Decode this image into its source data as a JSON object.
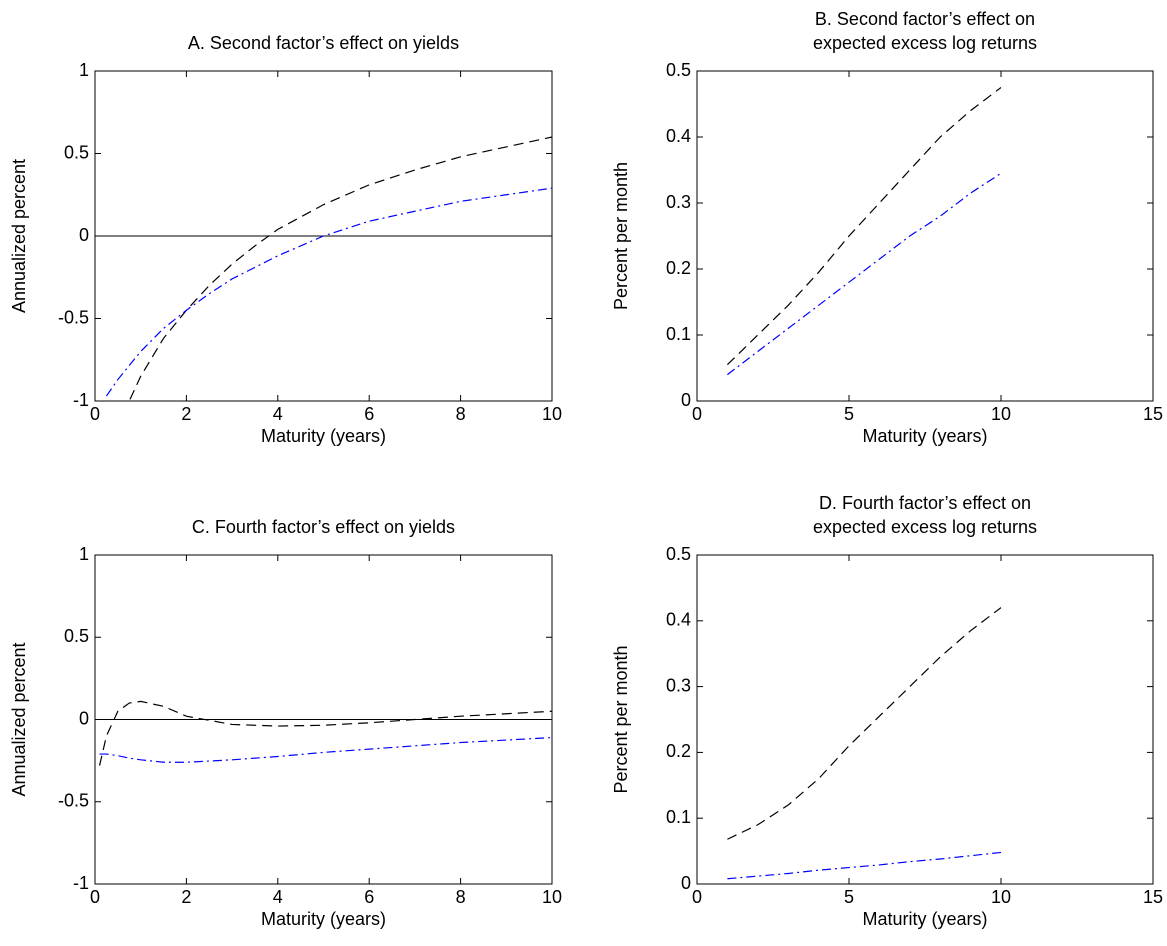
{
  "chart_data": [
    {
      "type": "line",
      "title": [
        "A. Second factor’s effect on yields"
      ],
      "xlabel": "Maturity (years)",
      "ylabel": "Annualized percent",
      "x": [
        0.25,
        0.5,
        1,
        1.5,
        2,
        2.5,
        3,
        3.5,
        4,
        5,
        6,
        7,
        8,
        9,
        10
      ],
      "series": [
        {
          "color": "#000000",
          "dash": "dashed",
          "values": [
            -1.35,
            -1.15,
            -0.85,
            -0.62,
            -0.45,
            -0.3,
            -0.17,
            -0.06,
            0.04,
            0.19,
            0.31,
            0.4,
            0.48,
            0.54,
            0.6
          ]
        },
        {
          "color": "#0000ff",
          "dash": "dashdot",
          "values": [
            -0.97,
            -0.87,
            -0.7,
            -0.56,
            -0.45,
            -0.35,
            -0.26,
            -0.19,
            -0.12,
            0.0,
            0.09,
            0.15,
            0.21,
            0.25,
            0.29
          ]
        }
      ],
      "xlim": [
        0,
        10
      ],
      "xticks": [
        0,
        2,
        4,
        6,
        8,
        10
      ],
      "ylim": [
        -1,
        1
      ],
      "yticks": [
        -1,
        -0.5,
        0,
        0.5,
        1
      ],
      "hline": 0
    },
    {
      "type": "line",
      "title": [
        "B. Second factor’s effect on",
        "expected excess log returns"
      ],
      "xlabel": "Maturity (years)",
      "ylabel": "Percent per month",
      "x": [
        1,
        2,
        3,
        4,
        5,
        6,
        7,
        8,
        9,
        10
      ],
      "series": [
        {
          "color": "#000000",
          "dash": "dashed",
          "values": [
            0.055,
            0.1,
            0.145,
            0.195,
            0.25,
            0.3,
            0.35,
            0.4,
            0.44,
            0.475
          ]
        },
        {
          "color": "#0000ff",
          "dash": "dashdot",
          "values": [
            0.04,
            0.075,
            0.11,
            0.145,
            0.18,
            0.215,
            0.25,
            0.28,
            0.315,
            0.345
          ]
        }
      ],
      "xlim": [
        0,
        15
      ],
      "xticks": [
        0,
        5,
        10,
        15
      ],
      "ylim": [
        0,
        0.5
      ],
      "yticks": [
        0,
        0.1,
        0.2,
        0.3,
        0.4,
        0.5
      ]
    },
    {
      "type": "line",
      "title": [
        "C. Fourth factor’s effect on yields"
      ],
      "xlabel": "Maturity (years)",
      "ylabel": "Annualized percent",
      "x": [
        0.1,
        0.25,
        0.5,
        0.75,
        1,
        1.5,
        2,
        3,
        4,
        5,
        6,
        7,
        8,
        9,
        10
      ],
      "series": [
        {
          "color": "#000000",
          "dash": "dashed",
          "values": [
            -0.28,
            -0.1,
            0.05,
            0.1,
            0.11,
            0.08,
            0.02,
            -0.03,
            -0.04,
            -0.035,
            -0.02,
            0.0,
            0.02,
            0.035,
            0.05
          ]
        },
        {
          "color": "#0000ff",
          "dash": "dashdot",
          "values": [
            -0.21,
            -0.21,
            -0.22,
            -0.235,
            -0.245,
            -0.26,
            -0.26,
            -0.245,
            -0.225,
            -0.2,
            -0.18,
            -0.16,
            -0.14,
            -0.125,
            -0.11
          ]
        }
      ],
      "xlim": [
        0,
        10
      ],
      "xticks": [
        0,
        2,
        4,
        6,
        8,
        10
      ],
      "ylim": [
        -1,
        1
      ],
      "yticks": [
        -1,
        -0.5,
        0,
        0.5,
        1
      ],
      "hline": 0
    },
    {
      "type": "line",
      "title": [
        "D. Fourth factor’s effect on",
        "expected excess log returns"
      ],
      "xlabel": "Maturity (years)",
      "ylabel": "Percent per month",
      "x": [
        1,
        2,
        3,
        4,
        5,
        6,
        7,
        8,
        9,
        10
      ],
      "series": [
        {
          "color": "#000000",
          "dash": "dashed",
          "values": [
            0.068,
            0.09,
            0.12,
            0.16,
            0.21,
            0.255,
            0.3,
            0.345,
            0.385,
            0.42
          ]
        },
        {
          "color": "#0000ff",
          "dash": "dashdot",
          "values": [
            0.008,
            0.012,
            0.016,
            0.021,
            0.025,
            0.029,
            0.034,
            0.038,
            0.043,
            0.048
          ]
        }
      ],
      "xlim": [
        0,
        15
      ],
      "xticks": [
        0,
        5,
        10,
        15
      ],
      "ylim": [
        0,
        0.5
      ],
      "yticks": [
        0,
        0.1,
        0.2,
        0.3,
        0.4,
        0.5
      ]
    }
  ]
}
